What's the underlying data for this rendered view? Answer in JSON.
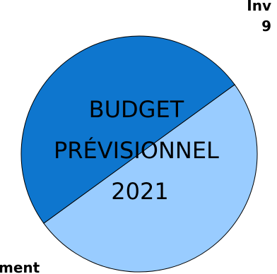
{
  "chart_data": {
    "type": "pie",
    "title_lines": [
      "BUDGET",
      "PRÉVISIONNEL",
      "2021"
    ],
    "slices": [
      {
        "label_lines": [
          "Inv",
          "9"
        ],
        "value": 50,
        "color": "#99CCFF"
      },
      {
        "label_lines": [
          "ment"
        ],
        "value": 50,
        "color": "#0E76CE"
      }
    ],
    "outline_color": "#000000"
  }
}
